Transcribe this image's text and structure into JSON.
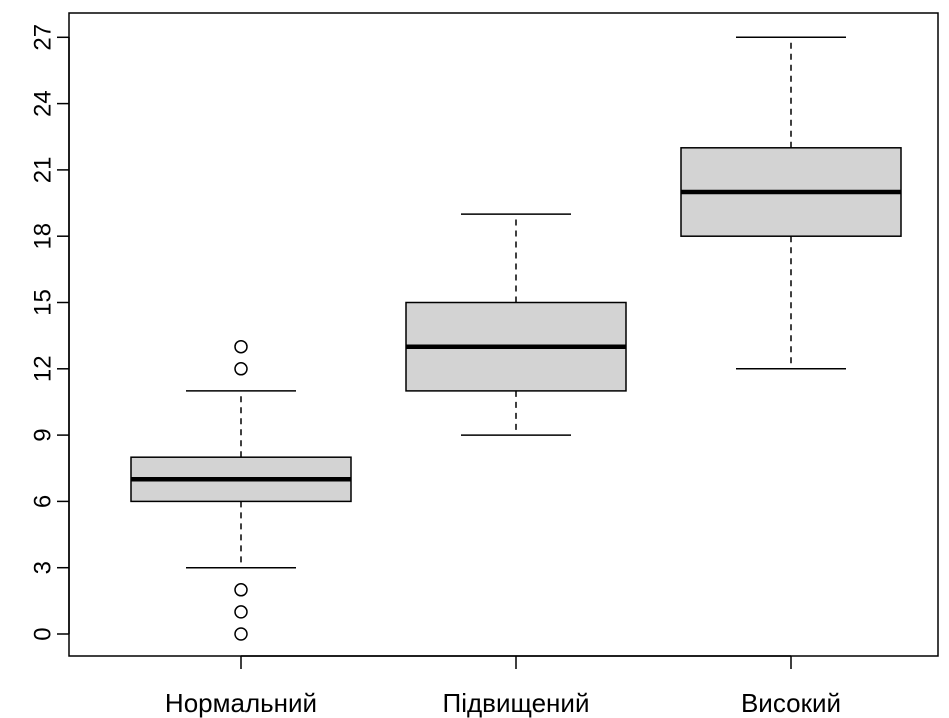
{
  "chart_data": {
    "type": "boxplot",
    "title": "",
    "xlabel": "",
    "ylabel": "",
    "ylim": [
      -1,
      28.5
    ],
    "yticks": [
      0,
      3,
      6,
      9,
      12,
      15,
      18,
      21,
      24,
      27
    ],
    "yticks_rotated": true,
    "grid": false,
    "categories": [
      "Нормальний",
      "Підвищений",
      "Високий"
    ],
    "box_fill": "#d3d3d3",
    "line_color": "#000000",
    "boxes": [
      {
        "category": "Нормальний",
        "whisker_low": 3,
        "q1": 6,
        "median": 7,
        "q3": 8,
        "whisker_high": 11,
        "outliers": [
          0,
          1,
          2,
          12,
          13
        ]
      },
      {
        "category": "Підвищений",
        "whisker_low": 9,
        "q1": 11,
        "median": 13,
        "q3": 15,
        "whisker_high": 19,
        "outliers": []
      },
      {
        "category": "Високий",
        "whisker_low": 12,
        "q1": 18,
        "median": 20,
        "q3": 22,
        "whisker_high": 27,
        "outliers": []
      }
    ]
  }
}
